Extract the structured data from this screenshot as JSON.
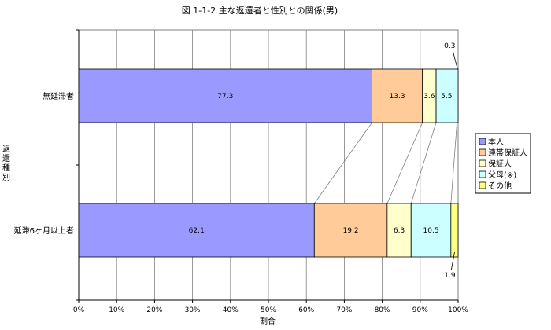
{
  "chart_data": {
    "type": "bar",
    "orientation": "horizontal",
    "stacked": "percent",
    "title": "図 1-1-2  主な返還者と性別との関係(男)",
    "xlabel": "割合",
    "ylabel": "返還種別",
    "xlim": [
      0,
      100
    ],
    "x_ticks": [
      "0%",
      "10%",
      "20%",
      "30%",
      "40%",
      "50%",
      "60%",
      "70%",
      "80%",
      "90%",
      "100%"
    ],
    "grid": true,
    "legend_position": "right",
    "categories": [
      "無延滞者",
      "延滞6ヶ月以上者"
    ],
    "series": [
      {
        "name": "本人",
        "color": "#9999ff",
        "values": [
          77.3,
          62.1
        ],
        "labels": [
          "77.3",
          "62.1"
        ]
      },
      {
        "name": "連帯保証人",
        "color": "#ffcc99",
        "values": [
          13.3,
          19.2
        ],
        "labels": [
          "13.3",
          "19.2"
        ]
      },
      {
        "name": "保証人",
        "color": "#ffffcc",
        "values": [
          3.6,
          6.3
        ],
        "labels": [
          "3.6",
          "6.3"
        ]
      },
      {
        "name": "父母(※)",
        "color": "#ccffff",
        "values": [
          5.5,
          10.5
        ],
        "labels": [
          "5.5",
          "10.5"
        ]
      },
      {
        "name": "その他",
        "color": "#ffff80",
        "values": [
          0.3,
          1.9
        ],
        "labels": [
          "0.3",
          "1.9"
        ]
      }
    ]
  }
}
